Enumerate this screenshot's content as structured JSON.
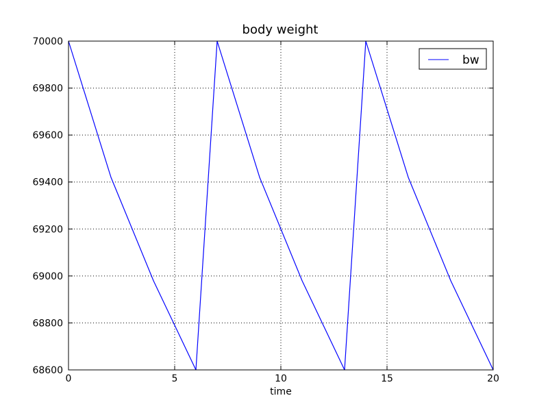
{
  "chart_data": {
    "type": "line",
    "title": "body weight",
    "xlabel": "time",
    "ylabel": "",
    "xlim": [
      0,
      20
    ],
    "ylim": [
      68600,
      70000
    ],
    "xticks": [
      0,
      5,
      10,
      15,
      20
    ],
    "yticks": [
      68600,
      68800,
      69000,
      69200,
      69400,
      69600,
      69800,
      70000
    ],
    "grid": true,
    "legend_position": "top-right",
    "series": [
      {
        "name": "bw",
        "color": "#0000ff",
        "x": [
          0,
          2,
          4,
          6,
          7,
          9,
          11,
          13,
          14,
          16,
          18,
          20
        ],
        "y": [
          70000,
          69420,
          68980,
          68600,
          70000,
          69420,
          68980,
          68600,
          70000,
          69420,
          68980,
          68600
        ]
      }
    ]
  }
}
